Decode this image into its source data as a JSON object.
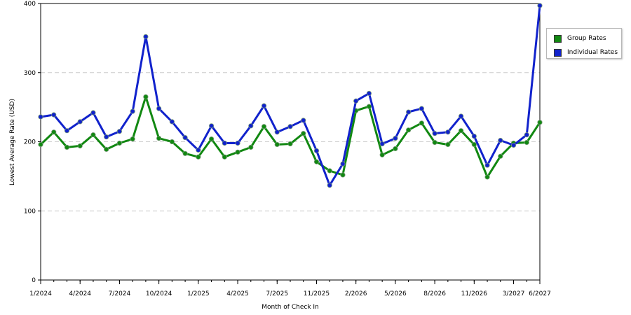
{
  "chart_data": {
    "type": "line",
    "title": "",
    "xlabel": "Month of Check In",
    "ylabel": "Lowest Average Rate (USD)",
    "ylim": [
      0,
      400
    ],
    "yticks": [
      0,
      100,
      200,
      300,
      400
    ],
    "grid": true,
    "legend_position": "top-right",
    "x_tick_labels": [
      "1/2024",
      "4/2024",
      "7/2024",
      "10/2024",
      "1/2025",
      "4/2025",
      "7/2025",
      "11/2025",
      "2/2026",
      "5/2026",
      "8/2026",
      "11/2026",
      "3/2027",
      "6/2027"
    ],
    "x_tick_index": [
      0,
      3,
      6,
      9,
      12,
      15,
      18,
      21,
      24,
      27,
      30,
      33,
      36,
      38
    ],
    "series": [
      {
        "name": "Group Rates",
        "color": "#118811",
        "values": [
          196,
          214,
          192,
          194,
          210,
          189,
          198,
          204,
          265,
          205,
          200,
          183,
          178,
          204,
          178,
          185,
          192,
          222,
          196,
          197,
          212,
          171,
          158,
          152,
          245,
          251,
          181,
          190,
          217,
          227,
          199,
          196,
          216,
          196,
          149,
          179,
          198,
          199,
          228
        ]
      },
      {
        "name": "Individual Rates",
        "color": "#1122cc",
        "values": [
          236,
          239,
          216,
          229,
          242,
          207,
          215,
          244,
          352,
          248,
          229,
          206,
          188,
          223,
          198,
          198,
          223,
          252,
          214,
          222,
          231,
          187,
          137,
          168,
          259,
          270,
          197,
          205,
          243,
          248,
          212,
          214,
          237,
          208,
          166,
          202,
          195,
          210,
          397
        ]
      }
    ]
  }
}
